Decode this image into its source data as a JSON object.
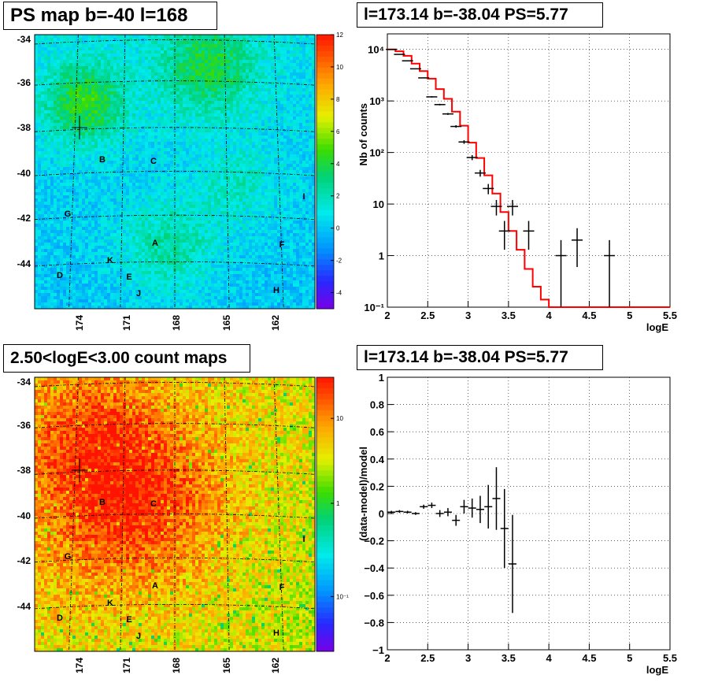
{
  "panels": {
    "ps_map": {
      "title": "PS map b=-40 l=168",
      "y_ticks": [
        "-34",
        "-36",
        "-38",
        "-40",
        "-42",
        "-44"
      ],
      "x_ticks": [
        "174",
        "171",
        "168",
        "165",
        "162"
      ],
      "colorbar_ticks": [
        "12",
        "10",
        "8",
        "6",
        "4",
        "2",
        "0",
        "-2",
        "-4"
      ],
      "colorbar_range": [
        -5,
        12
      ],
      "source_labels": [
        "B",
        "C",
        "G",
        "I",
        "A",
        "F",
        "K",
        "D",
        "E",
        "J",
        "H"
      ]
    },
    "count_map": {
      "title": "2.50<logE<3.00 count maps",
      "y_ticks": [
        "-34",
        "-36",
        "-38",
        "-40",
        "-42",
        "-44"
      ],
      "x_ticks": [
        "174",
        "171",
        "168",
        "165",
        "162"
      ],
      "colorbar_ticks": [
        "10",
        "1",
        "10⁻¹"
      ],
      "source_labels": [
        "B",
        "C",
        "G",
        "I",
        "A",
        "F",
        "K",
        "D",
        "E",
        "J",
        "H"
      ]
    },
    "spectrum": {
      "title": "l=173.14 b=-38.04 PS=5.77"
    },
    "ratio": {
      "title": "l=173.14 b=-38.04 PS=5.77"
    }
  },
  "chart_data": [
    {
      "type": "heatmap",
      "title": "PS map b=-40 l=168",
      "xlabel": "",
      "ylabel": "",
      "x_ticks": [
        "174",
        "171",
        "168",
        "165",
        "162"
      ],
      "y_ticks": [
        "-34",
        "-36",
        "-38",
        "-40",
        "-42",
        "-44"
      ],
      "xlim": [
        176.5,
        159.5
      ],
      "ylim": [
        -46,
        -33.5
      ],
      "color_range": [
        -5,
        12
      ],
      "colorbar_ticks": [
        12,
        10,
        8,
        6,
        4,
        2,
        0,
        -2,
        -4
      ],
      "labels": [
        "B",
        "C",
        "G",
        "I",
        "A",
        "F",
        "K",
        "D",
        "E",
        "J",
        "H"
      ],
      "grid": true
    },
    {
      "type": "line",
      "title": "l=173.14 b=-38.04 PS=5.77",
      "xlabel": "logE",
      "ylabel": "Nb of counts",
      "yscale": "log",
      "xlim": [
        2,
        5.5
      ],
      "ylim": [
        0.1,
        20000
      ],
      "x_ticks": [
        "2",
        "2.5",
        "3",
        "3.5",
        "4",
        "4.5",
        "5",
        "5.5"
      ],
      "y_ticks": [
        "10⁻¹",
        "1",
        "10",
        "10²",
        "10³",
        "10⁴"
      ],
      "series": [
        {
          "x": [
            2.05,
            2.15,
            2.25,
            2.35,
            2.45,
            2.55,
            2.65,
            2.75,
            2.85,
            2.95,
            3.05,
            3.15,
            3.25,
            3.35,
            3.45,
            3.55,
            3.65,
            3.75,
            3.85,
            4.15,
            4.35,
            4.75
          ],
          "y": [
            10000,
            8000,
            6000,
            4200,
            2800,
            1200,
            850,
            560,
            320,
            160,
            80,
            40,
            20,
            9,
            3,
            9,
            0,
            3,
            0,
            1,
            2,
            1
          ],
          "yerr": [
            100,
            90,
            80,
            65,
            53,
            35,
            29,
            24,
            18,
            13,
            9,
            6,
            4.5,
            3,
            1.7,
            3,
            0,
            1.7,
            0,
            1,
            1.4,
            1
          ]
        },
        {
          "x": [
            2,
            2.1,
            2.2,
            2.3,
            2.4,
            2.5,
            2.6,
            2.7,
            2.8,
            2.9,
            3.0,
            3.1,
            3.2,
            3.3,
            3.4,
            3.5,
            3.6,
            3.7,
            3.8,
            3.9,
            4.0,
            4.1,
            5.5
          ],
          "y": [
            10000,
            9200,
            7500,
            5300,
            3800,
            2700,
            1700,
            1100,
            620,
            330,
            155,
            78,
            36,
            16,
            7,
            3,
            1.3,
            0.55,
            0.25,
            0.14,
            0.1,
            0.1,
            0.1
          ]
        }
      ],
      "grid": true
    },
    {
      "type": "heatmap",
      "title": "2.50<logE<3.00 count maps",
      "xlabel": "",
      "ylabel": "",
      "x_ticks": [
        "174",
        "171",
        "168",
        "165",
        "162"
      ],
      "y_ticks": [
        "-34",
        "-36",
        "-38",
        "-40",
        "-42",
        "-44"
      ],
      "xlim": [
        176.5,
        159.5
      ],
      "ylim": [
        -46,
        -33.5
      ],
      "colorbar_scale": "log",
      "colorbar_ticks": [
        "10",
        "1",
        "10⁻¹"
      ],
      "labels": [
        "B",
        "C",
        "G",
        "I",
        "A",
        "F",
        "K",
        "D",
        "E",
        "J",
        "H"
      ],
      "grid": true
    },
    {
      "type": "scatter",
      "title": "l=173.14 b=-38.04 PS=5.77",
      "xlabel": "logE",
      "ylabel": "(data-model)/model",
      "xlim": [
        2,
        5.5
      ],
      "ylim": [
        -1,
        1
      ],
      "x_ticks": [
        "2",
        "2.5",
        "3",
        "3.5",
        "4",
        "4.5",
        "5",
        "5.5"
      ],
      "y_ticks": [
        "−1",
        "−0.8",
        "−0.6",
        "−0.4",
        "−0.2",
        "0",
        "0.2",
        "0.4",
        "0.6",
        "0.8",
        "1"
      ],
      "x": [
        2.05,
        2.15,
        2.25,
        2.35,
        2.45,
        2.55,
        2.65,
        2.75,
        2.85,
        2.95,
        3.05,
        3.15,
        3.25,
        3.35,
        3.45,
        3.55
      ],
      "y": [
        0.01,
        0.015,
        0.01,
        0.0,
        0.05,
        0.06,
        0.0,
        0.01,
        -0.05,
        0.05,
        0.04,
        0.03,
        0.05,
        0.11,
        -0.11,
        -0.37
      ],
      "yerr": [
        0.01,
        0.01,
        0.01,
        0.01,
        0.015,
        0.02,
        0.025,
        0.03,
        0.04,
        0.05,
        0.07,
        0.1,
        0.16,
        0.23,
        0.29,
        0.36
      ],
      "grid": true
    }
  ]
}
